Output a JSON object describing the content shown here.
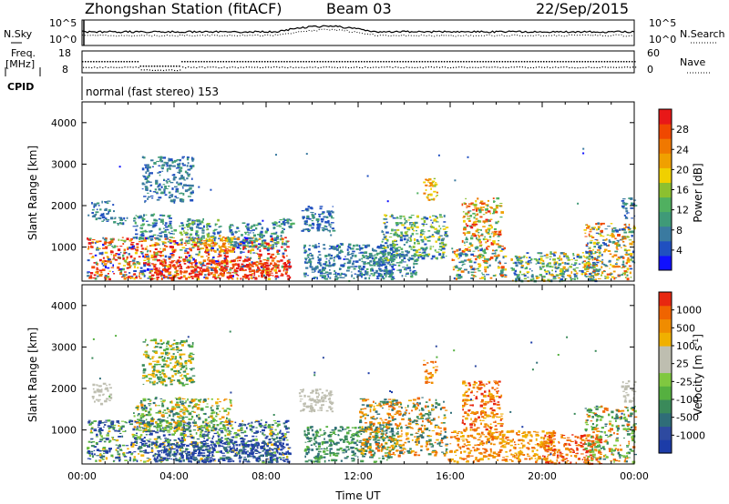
{
  "header": {
    "station": "Zhongshan Station (fitACF)",
    "beam": "Beam 03",
    "date": "22/Sep/2015"
  },
  "top_panels": {
    "nsky_label": "N.Sky",
    "nsky_ticks": [
      "10^5",
      "10^0"
    ],
    "nsearch_label": "N.Search",
    "nsearch_ticks": [
      "10^5",
      "10^0"
    ],
    "freq_label_1": "Freq.",
    "freq_label_2": "[MHz]",
    "freq_ticks": [
      "18",
      "8"
    ],
    "nave_label": "Nave",
    "nave_ticks": [
      "60",
      "0"
    ],
    "cpid_label": "CPID",
    "cpid_text": "normal (fast stereo) 153"
  },
  "chart_data": [
    {
      "type": "heatmap",
      "name": "power-panel",
      "ylabel": "Slant Range [km]",
      "yticks": [
        "1000",
        "2000",
        "3000",
        "4000"
      ],
      "ylim": [
        180,
        4500
      ],
      "xticks": [
        "00:00",
        "04:00",
        "08:00",
        "12:00",
        "16:00",
        "20:00",
        "00:00"
      ],
      "xlim": [
        0,
        24
      ],
      "colorbar": {
        "label": "Power [dB]",
        "ticks": [
          "4",
          "8",
          "12",
          "16",
          "20",
          "24",
          "28"
        ],
        "colors": [
          "#1010ff",
          "#2050c0",
          "#3a7aa0",
          "#3f9a78",
          "#50b060",
          "#8cc030",
          "#f0d000",
          "#f0a000",
          "#f07800",
          "#f04800",
          "#e81818"
        ]
      },
      "regions": [
        {
          "x0": 0.2,
          "x1": 9.0,
          "y0": 250,
          "y1": 1250,
          "levels": [
            0,
            1,
            2,
            4,
            5,
            6,
            7,
            8,
            9,
            10,
            10,
            9,
            10
          ]
        },
        {
          "x0": 3.0,
          "x1": 9.0,
          "y0": 250,
          "y1": 700,
          "levels": [
            8,
            9,
            10,
            10,
            10,
            9
          ]
        },
        {
          "x0": 0.4,
          "x1": 1.2,
          "y0": 1600,
          "y1": 2150,
          "levels": [
            1,
            2,
            3
          ]
        },
        {
          "x0": 1.2,
          "x1": 2.0,
          "y0": 1500,
          "y1": 1750,
          "levels": [
            1,
            2,
            3
          ]
        },
        {
          "x0": 2.2,
          "x1": 4.0,
          "y0": 1200,
          "y1": 1800,
          "levels": [
            1,
            2,
            3,
            4
          ]
        },
        {
          "x0": 4.2,
          "x1": 6.0,
          "y0": 1100,
          "y1": 1700,
          "levels": [
            1,
            2,
            3,
            4,
            5
          ]
        },
        {
          "x0": 5.2,
          "x1": 6.6,
          "y0": 900,
          "y1": 1300,
          "levels": [
            6,
            7,
            8
          ]
        },
        {
          "x0": 6.3,
          "x1": 8.8,
          "y0": 1000,
          "y1": 1600,
          "levels": [
            1,
            2,
            3,
            4
          ]
        },
        {
          "x0": 2.6,
          "x1": 4.8,
          "y0": 2100,
          "y1": 3200,
          "levels": [
            1,
            2,
            3
          ]
        },
        {
          "x0": 8.2,
          "x1": 9.2,
          "y0": 1450,
          "y1": 1700,
          "levels": [
            1,
            2,
            3,
            4
          ]
        },
        {
          "x0": 9.4,
          "x1": 10.9,
          "y0": 1400,
          "y1": 2000,
          "levels": [
            1,
            2,
            3
          ]
        },
        {
          "x0": 9.6,
          "x1": 13.5,
          "y0": 250,
          "y1": 1100,
          "levels": [
            1,
            2,
            3
          ]
        },
        {
          "x0": 12.0,
          "x1": 14.5,
          "y0": 300,
          "y1": 900,
          "levels": [
            1,
            2,
            3,
            4
          ]
        },
        {
          "x0": 13.0,
          "x1": 15.8,
          "y0": 700,
          "y1": 1800,
          "levels": [
            1,
            2,
            3,
            4,
            5,
            6
          ]
        },
        {
          "x0": 14.8,
          "x1": 15.4,
          "y0": 2150,
          "y1": 2700,
          "levels": [
            5,
            6,
            7,
            8
          ]
        },
        {
          "x0": 16.5,
          "x1": 18.2,
          "y0": 1000,
          "y1": 2200,
          "levels": [
            3,
            4,
            5,
            6,
            7,
            8,
            9,
            10
          ]
        },
        {
          "x0": 16.0,
          "x1": 18.4,
          "y0": 250,
          "y1": 1000,
          "levels": [
            1,
            2,
            3,
            4,
            6,
            8,
            9
          ]
        },
        {
          "x0": 18.6,
          "x1": 22.5,
          "y0": 200,
          "y1": 900,
          "levels": [
            1,
            2,
            3,
            4,
            5,
            6,
            7
          ]
        },
        {
          "x0": 21.8,
          "x1": 24.0,
          "y0": 250,
          "y1": 1600,
          "levels": [
            1,
            2,
            3,
            5,
            6,
            7,
            8,
            9
          ]
        },
        {
          "x0": 23.4,
          "x1": 24.0,
          "y0": 1700,
          "y1": 2200,
          "levels": [
            1,
            2,
            3
          ]
        }
      ]
    },
    {
      "type": "heatmap",
      "name": "velocity-panel",
      "ylabel": "Slant Range [km]",
      "yticks": [
        "1000",
        "2000",
        "3000",
        "4000"
      ],
      "ylim": [
        180,
        4500
      ],
      "xticks": [
        "00:00",
        "04:00",
        "08:00",
        "12:00",
        "16:00",
        "20:00",
        "00:00"
      ],
      "xlim": [
        0,
        24
      ],
      "xlabel": "Time UT",
      "colorbar": {
        "label": "Velocity [m s-1]",
        "label_main": "Velocity",
        "label_units_1": "[m s",
        "label_sup": "-1",
        "label_units_2": "]",
        "ticks": [
          "1000",
          "500",
          "100",
          "25",
          "-25",
          "-100",
          "-500",
          "-1000"
        ],
        "colors": [
          "#1c3ca8",
          "#2e4aa0",
          "#2f6d78",
          "#3a8a5a",
          "#55b040",
          "#80c840",
          "#bebeb0",
          "#bebeb0",
          "#f0b000",
          "#f08c00",
          "#f06400",
          "#e82810"
        ]
      },
      "regions": [
        {
          "x0": 0.4,
          "x1": 1.2,
          "y0": 1650,
          "y1": 2150,
          "levels": [
            6,
            6,
            7
          ]
        },
        {
          "x0": 9.4,
          "x1": 10.9,
          "y0": 1450,
          "y1": 2000,
          "levels": [
            6,
            7
          ]
        },
        {
          "x0": 23.4,
          "x1": 24.0,
          "y0": 1700,
          "y1": 2200,
          "levels": [
            6,
            7
          ]
        },
        {
          "x0": 0.2,
          "x1": 9.0,
          "y0": 250,
          "y1": 1250,
          "levels": [
            0,
            1,
            2,
            3,
            4,
            5,
            8,
            0,
            1
          ]
        },
        {
          "x0": 3.0,
          "x1": 9.0,
          "y0": 250,
          "y1": 750,
          "levels": [
            0,
            1,
            2,
            0,
            1
          ]
        },
        {
          "x0": 2.2,
          "x1": 6.5,
          "y0": 1000,
          "y1": 1800,
          "levels": [
            2,
            3,
            4,
            5,
            8,
            9
          ]
        },
        {
          "x0": 2.6,
          "x1": 4.8,
          "y0": 2100,
          "y1": 3200,
          "levels": [
            3,
            4,
            8
          ]
        },
        {
          "x0": 9.6,
          "x1": 13.5,
          "y0": 250,
          "y1": 1100,
          "levels": [
            2,
            3,
            4
          ]
        },
        {
          "x0": 12.0,
          "x1": 15.8,
          "y0": 400,
          "y1": 1800,
          "levels": [
            2,
            3,
            8,
            9,
            10
          ]
        },
        {
          "x0": 14.8,
          "x1": 15.4,
          "y0": 2150,
          "y1": 2700,
          "levels": [
            8,
            9,
            10
          ]
        },
        {
          "x0": 16.5,
          "x1": 18.2,
          "y0": 1000,
          "y1": 2200,
          "levels": [
            8,
            9,
            10,
            11
          ]
        },
        {
          "x0": 15.8,
          "x1": 20.5,
          "y0": 250,
          "y1": 1000,
          "levels": [
            8,
            9,
            10
          ]
        },
        {
          "x0": 20.0,
          "x1": 22.5,
          "y0": 200,
          "y1": 900,
          "levels": [
            9,
            10,
            11
          ]
        },
        {
          "x0": 21.8,
          "x1": 24.0,
          "y0": 250,
          "y1": 1600,
          "levels": [
            2,
            3,
            4,
            5,
            9,
            10
          ]
        }
      ]
    }
  ]
}
